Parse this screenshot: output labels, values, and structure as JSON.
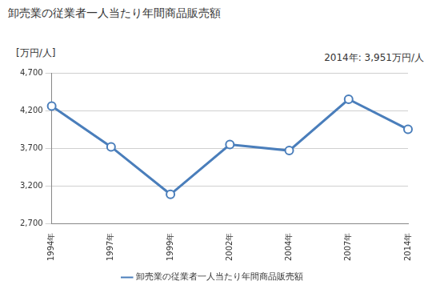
{
  "chart_data": {
    "type": "line",
    "title": "卸売業の従業者一人当たり年間商品販売額",
    "ylabel": "[万円/人]",
    "annotations": [
      "2014年: 3,951万円/人"
    ],
    "categories": [
      "1994年",
      "1997年",
      "1999年",
      "2002年",
      "2004年",
      "2007年",
      "2014年"
    ],
    "series": [
      {
        "name": "卸売業の従業者一人当たり年間商品販売額",
        "color": "#4a7ebb",
        "marker": "circle",
        "values": [
          4260,
          3720,
          3090,
          3750,
          3670,
          4350,
          3951
        ]
      }
    ],
    "ylim": [
      2700,
      4700
    ],
    "yticks": [
      {
        "value": 2700,
        "label": "2,700"
      },
      {
        "value": 3200,
        "label": "3,200"
      },
      {
        "value": 3700,
        "label": "3,700"
      },
      {
        "value": 4200,
        "label": "4,200"
      },
      {
        "value": 4700,
        "label": "4,700"
      }
    ],
    "grid": true,
    "legend": "bottom"
  }
}
